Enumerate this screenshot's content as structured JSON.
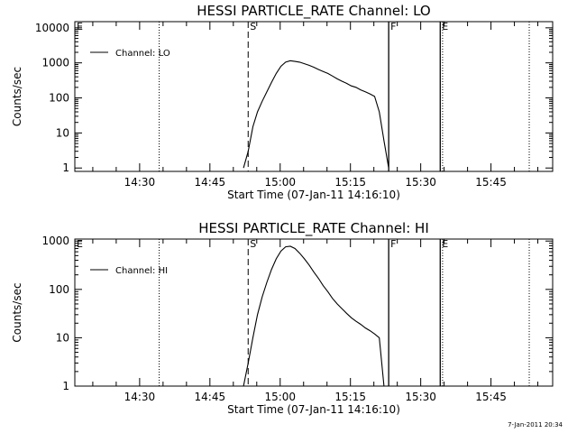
{
  "footer": {
    "timestamp": "7-Jan-2011 20:34"
  },
  "colors": {
    "background": "#ffffff",
    "foreground": "#000000"
  },
  "chart_data": [
    {
      "type": "line",
      "title": "HESSI PARTICLE_RATE Channel: LO",
      "xlabel": "Start Time (07-Jan-11 14:16:10)",
      "ylabel": "Counts/sec",
      "yscale": "log",
      "ylim": [
        0.8,
        15000
      ],
      "xlim": [
        "14:16:10",
        "15:58:10"
      ],
      "x_ticks": [
        "14:30",
        "14:45",
        "15:00",
        "15:15",
        "15:30",
        "15:45"
      ],
      "y_ticks": [
        "1",
        "10",
        "100",
        "1000",
        "10000"
      ],
      "legend": {
        "position": "top-left",
        "entries": [
          "Channel: LO"
        ]
      },
      "markers": [
        {
          "label": "E",
          "time": "14:16:10",
          "style": "dotted"
        },
        {
          "label": "",
          "time": "14:34:10",
          "style": "dotted"
        },
        {
          "label": "S",
          "time": "14:53:10",
          "style": "dashed"
        },
        {
          "label": "F",
          "time": "15:23:10",
          "style": "solid"
        },
        {
          "label": "E",
          "time": "15:34:10",
          "style": "solid"
        },
        {
          "label": "",
          "time": "15:34:40",
          "style": "dotted"
        },
        {
          "label": "",
          "time": "15:53:10",
          "style": "dotted"
        }
      ],
      "series": [
        {
          "name": "Channel: LO",
          "x": [
            "14:52:10",
            "14:53:10",
            "14:54:10",
            "14:55:10",
            "14:56:10",
            "14:57:10",
            "14:58:10",
            "14:59:10",
            "15:00:10",
            "15:01:10",
            "15:02:10",
            "15:03:10",
            "15:04:10",
            "15:05:10",
            "15:06:10",
            "15:07:10",
            "15:08:10",
            "15:09:10",
            "15:10:10",
            "15:11:10",
            "15:12:10",
            "15:13:10",
            "15:14:10",
            "15:15:10",
            "15:16:10",
            "15:17:10",
            "15:18:10",
            "15:19:10",
            "15:20:10",
            "15:21:10",
            "15:22:10",
            "15:23:10"
          ],
          "y": [
            1,
            3,
            15,
            40,
            80,
            150,
            280,
            500,
            800,
            1050,
            1150,
            1100,
            1050,
            950,
            850,
            750,
            650,
            570,
            500,
            420,
            350,
            300,
            260,
            220,
            200,
            170,
            150,
            130,
            110,
            40,
            6,
            1
          ]
        }
      ]
    },
    {
      "type": "line",
      "title": "HESSI PARTICLE_RATE Channel: HI",
      "xlabel": "Start Time (07-Jan-11 14:16:10)",
      "ylabel": "Counts/sec",
      "yscale": "log",
      "ylim": [
        1,
        1100
      ],
      "xlim": [
        "14:16:10",
        "15:58:10"
      ],
      "x_ticks": [
        "14:30",
        "14:45",
        "15:00",
        "15:15",
        "15:30",
        "15:45"
      ],
      "y_ticks": [
        "1",
        "10",
        "100",
        "1000"
      ],
      "legend": {
        "position": "top-left",
        "entries": [
          "Channel: HI"
        ]
      },
      "markers": [
        {
          "label": "E",
          "time": "14:16:10",
          "style": "dotted"
        },
        {
          "label": "",
          "time": "14:34:10",
          "style": "dotted"
        },
        {
          "label": "S",
          "time": "14:53:10",
          "style": "dashed"
        },
        {
          "label": "F",
          "time": "15:23:10",
          "style": "solid"
        },
        {
          "label": "E",
          "time": "15:34:10",
          "style": "solid"
        },
        {
          "label": "",
          "time": "15:34:40",
          "style": "dotted"
        },
        {
          "label": "",
          "time": "15:53:10",
          "style": "dotted"
        }
      ],
      "series": [
        {
          "name": "Channel: HI",
          "x": [
            "14:52:10",
            "14:53:10",
            "14:54:10",
            "14:55:10",
            "14:56:10",
            "14:57:10",
            "14:58:10",
            "14:59:10",
            "15:00:10",
            "15:01:10",
            "15:02:10",
            "15:03:10",
            "15:04:10",
            "15:05:10",
            "15:06:10",
            "15:07:10",
            "15:08:10",
            "15:09:10",
            "15:10:10",
            "15:11:10",
            "15:12:10",
            "15:13:10",
            "15:14:10",
            "15:15:10",
            "15:16:10",
            "15:17:10",
            "15:18:10",
            "15:19:10",
            "15:20:10",
            "15:21:10",
            "15:22:10"
          ],
          "y": [
            1,
            3,
            10,
            30,
            70,
            140,
            260,
            430,
            620,
            760,
            780,
            700,
            560,
            430,
            320,
            230,
            170,
            120,
            90,
            65,
            50,
            40,
            32,
            26,
            22,
            19,
            16,
            14,
            12,
            10,
            1
          ]
        }
      ]
    }
  ]
}
